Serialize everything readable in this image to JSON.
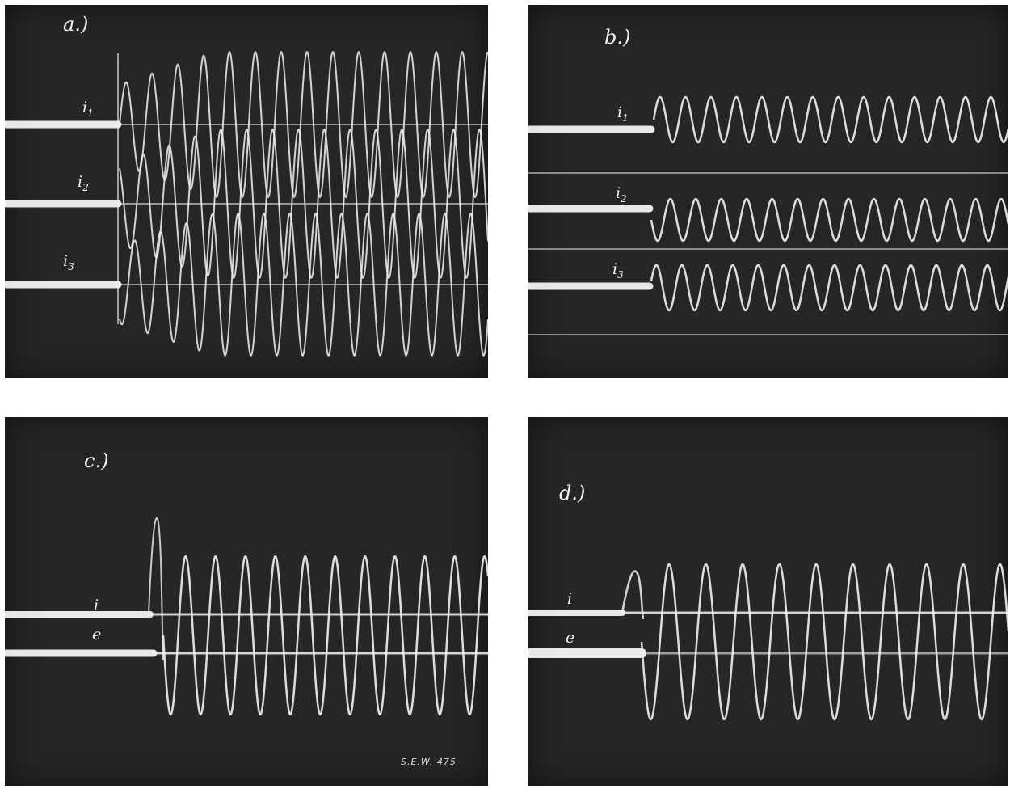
{
  "figure": {
    "panels": [
      {
        "id": "a",
        "label": "a.)",
        "trace_labels": [
          [
            "i",
            "1"
          ],
          [
            "i",
            "2"
          ],
          [
            "i",
            "3"
          ]
        ]
      },
      {
        "id": "b",
        "label": "b.)",
        "trace_labels": [
          [
            "i",
            "1"
          ],
          [
            "i",
            "2"
          ],
          [
            "i",
            "3"
          ]
        ]
      },
      {
        "id": "c",
        "label": "c.)",
        "trace_labels": [
          [
            "i",
            ""
          ],
          [
            "e",
            ""
          ]
        ],
        "code": "S.E.W. 475"
      },
      {
        "id": "d",
        "label": "d.)",
        "trace_labels": [
          [
            "i",
            ""
          ],
          [
            "e",
            ""
          ]
        ]
      }
    ],
    "colors": {
      "background": "#262626",
      "trace": "#f2f2f2",
      "paper": "#ffffff"
    }
  }
}
